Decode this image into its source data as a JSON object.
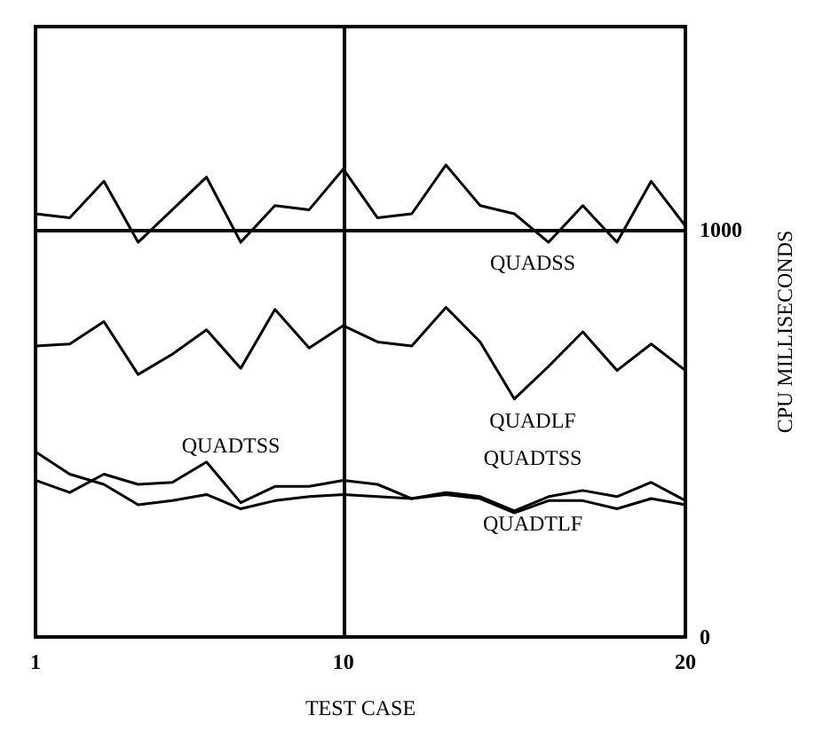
{
  "chart_data": {
    "type": "line",
    "xlabel": "TEST CASE",
    "ylabel": "CPU MILLISECONDS",
    "x": [
      1,
      2,
      3,
      4,
      5,
      6,
      7,
      8,
      9,
      10,
      11,
      12,
      13,
      14,
      15,
      16,
      17,
      18,
      19,
      20
    ],
    "series": [
      {
        "color": "#000000",
        "values": [
          1040,
          1030,
          1120,
          970,
          1050,
          1130,
          970,
          1060,
          1050,
          1150,
          1030,
          1040,
          1160,
          1060,
          1040,
          970,
          1060,
          970,
          1120,
          1010
        ]
      },
      {
        "color": "#000000",
        "values": [
          715,
          720,
          775,
          645,
          695,
          755,
          660,
          805,
          710,
          765,
          725,
          715,
          810,
          725,
          585,
          665,
          750,
          655,
          720,
          655
        ]
      },
      {
        "color": "#000000",
        "values": [
          385,
          355,
          400,
          375,
          380,
          430,
          330,
          370,
          370,
          385,
          375,
          340,
          355,
          345,
          310,
          345,
          360,
          345,
          380,
          335
        ]
      },
      {
        "color": "#000000",
        "values": [
          455,
          400,
          375,
          325,
          335,
          350,
          315,
          335,
          345,
          350,
          345,
          340,
          350,
          340,
          305,
          335,
          335,
          315,
          340,
          325
        ]
      }
    ],
    "xlim": [
      1,
      20
    ],
    "xticks": [
      1,
      10,
      20
    ],
    "ylim": [
      0,
      1500
    ],
    "yticks": [
      0,
      1000
    ],
    "grid": true,
    "marker": "none",
    "line_style": "solid",
    "annotations": [
      "QUADSS",
      "QUADLF",
      "QUADTSS",
      "QUADTSS",
      "QUADTLF"
    ]
  }
}
